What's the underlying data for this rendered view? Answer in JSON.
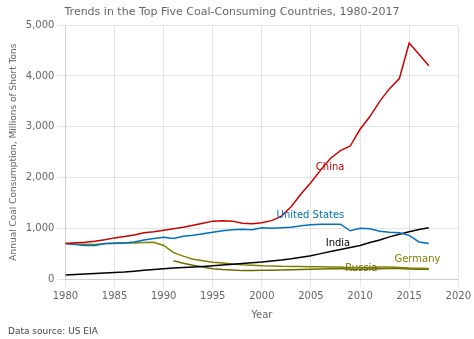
{
  "chart_data": {
    "type": "line",
    "title": "Trends in the Top Five Coal-Consuming Countries, 1980-2017",
    "x_label": "Year",
    "y_label": "Annual Coal Consumption, Millions of Short Tons",
    "x": [
      1980,
      1981,
      1982,
      1983,
      1984,
      1985,
      1986,
      1987,
      1988,
      1989,
      1990,
      1991,
      1992,
      1993,
      1994,
      1995,
      1996,
      1997,
      1998,
      1999,
      2000,
      2001,
      2002,
      2003,
      2004,
      2005,
      2006,
      2007,
      2008,
      2009,
      2010,
      2011,
      2012,
      2013,
      2014,
      2015,
      2016,
      2017
    ],
    "series": [
      {
        "name": "China",
        "color": "#cc0000",
        "values": [
          700,
          715,
          725,
          745,
          775,
          810,
          835,
          865,
          910,
          930,
          960,
          990,
          1020,
          1060,
          1100,
          1140,
          1150,
          1140,
          1100,
          1090,
          1110,
          1150,
          1240,
          1430,
          1680,
          1900,
          2150,
          2380,
          2530,
          2620,
          2950,
          3200,
          3500,
          3750,
          3950,
          4650,
          4430,
          4200
        ]
      },
      {
        "name": "United States",
        "color": "#0070c0",
        "values": [
          700,
          680,
          660,
          660,
          700,
          710,
          710,
          730,
          770,
          800,
          820,
          800,
          840,
          860,
          890,
          920,
          950,
          970,
          980,
          970,
          1010,
          1000,
          1010,
          1020,
          1050,
          1070,
          1080,
          1080,
          1080,
          950,
          1000,
          990,
          940,
          920,
          910,
          860,
          730,
          700
        ]
      },
      {
        "name": "India",
        "color": "#000000",
        "values": [
          80,
          90,
          100,
          110,
          120,
          130,
          140,
          155,
          170,
          185,
          200,
          215,
          225,
          235,
          248,
          260,
          275,
          290,
          305,
          320,
          335,
          355,
          375,
          400,
          430,
          460,
          500,
          540,
          580,
          620,
          660,
          720,
          770,
          830,
          880,
          930,
          975,
          1010
        ]
      },
      {
        "name": "Germany",
        "color": "#808000",
        "values": [
          700,
          690,
          685,
          680,
          695,
          700,
          710,
          710,
          720,
          725,
          660,
          520,
          450,
          390,
          360,
          330,
          315,
          295,
          280,
          270,
          260,
          258,
          250,
          248,
          245,
          243,
          240,
          238,
          238,
          220,
          228,
          228,
          238,
          238,
          225,
          215,
          210,
          205
        ]
      },
      {
        "name": "Russia",
        "color": "#6b6b00",
        "values": [
          null,
          null,
          null,
          null,
          null,
          null,
          null,
          null,
          null,
          null,
          null,
          360,
          310,
          270,
          235,
          200,
          185,
          178,
          165,
          165,
          170,
          172,
          175,
          180,
          185,
          190,
          195,
          200,
          205,
          185,
          190,
          195,
          200,
          205,
          205,
          198,
          192,
          192
        ]
      }
    ],
    "annotations": [
      {
        "text": "China",
        "x": 2005.5,
        "y": 2100,
        "color": "#cc0000"
      },
      {
        "text": "United States",
        "x": 2001.5,
        "y": 1155,
        "color": "#0070c0"
      },
      {
        "text": "India",
        "x": 2006.5,
        "y": 610,
        "color": "#000000"
      },
      {
        "text": "Germany",
        "x": 2013.5,
        "y": 285,
        "color": "#808000"
      },
      {
        "text": "Russia",
        "x": 2008.5,
        "y": 108,
        "color": "#6b6b00"
      },
      {
        "text": "Data source: US EIA"
      }
    ],
    "xlim": [
      1980,
      2020
    ],
    "xticks": [
      1980,
      1985,
      1990,
      1995,
      2000,
      2005,
      2010,
      2015,
      2020
    ],
    "ylim": [
      0,
      5000
    ],
    "yticks": [
      0,
      {
        "value": 1000,
        "label": "1,000"
      },
      {
        "value": 2000,
        "label": "2,000"
      },
      {
        "value": 3000,
        "label": "3,000"
      },
      {
        "value": 4000,
        "label": "4,000"
      },
      {
        "value": 5000,
        "label": "5,000"
      }
    ],
    "grid": true
  }
}
